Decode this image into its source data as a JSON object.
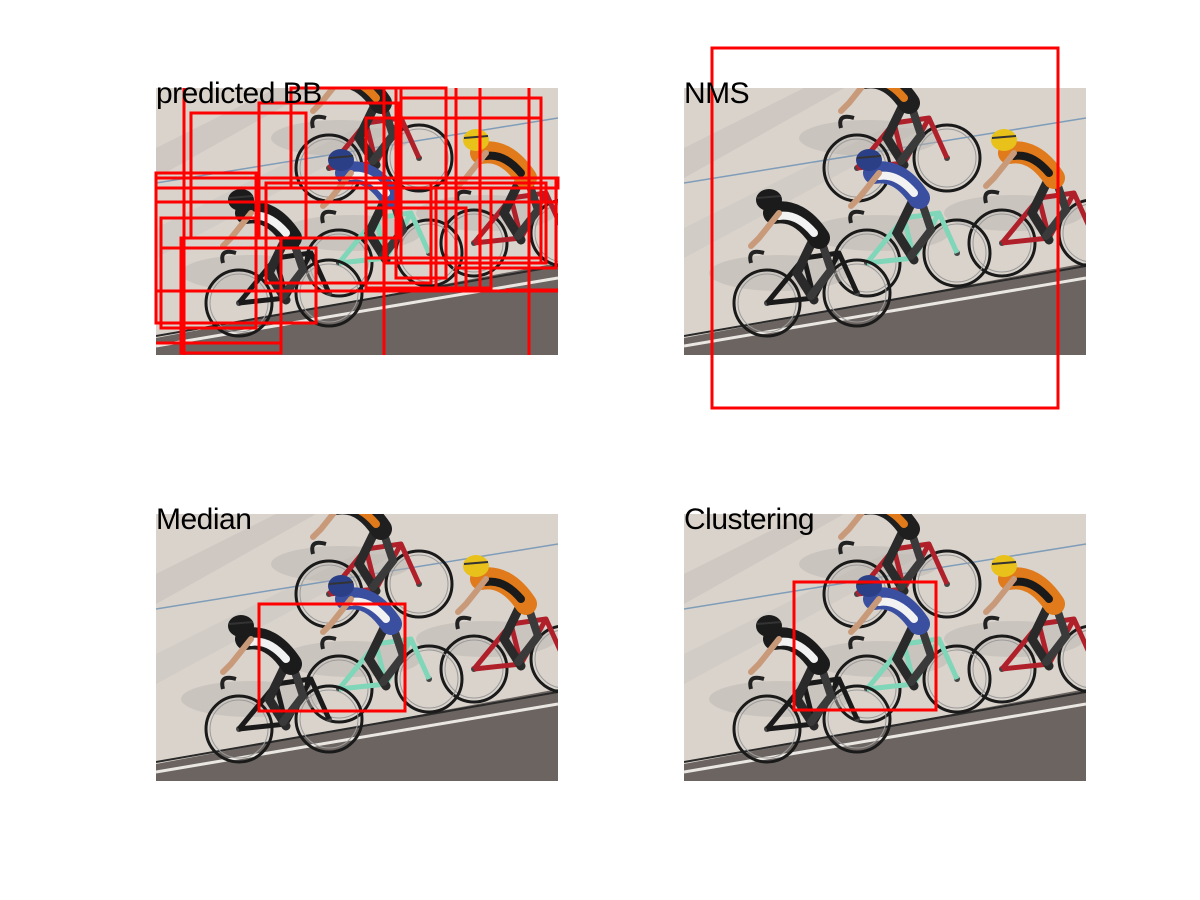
{
  "panels": [
    {
      "id": "predicted",
      "label": "predicted BB"
    },
    {
      "id": "nms",
      "label": "NMS"
    },
    {
      "id": "median",
      "label": "Median"
    },
    {
      "id": "clustering",
      "label": "Clustering"
    }
  ],
  "colors": {
    "box": "#ff0000",
    "track": "#d9d3cc",
    "track_dark": "#6b6460",
    "jersey_orange": "#e07a1a",
    "helmet_yellow": "#e8c21a",
    "frame_mint": "#7fd6b8",
    "frame_red": "#b0202a",
    "jersey_white": "#f2f2f2",
    "jersey_blue": "#3b4fa0"
  }
}
